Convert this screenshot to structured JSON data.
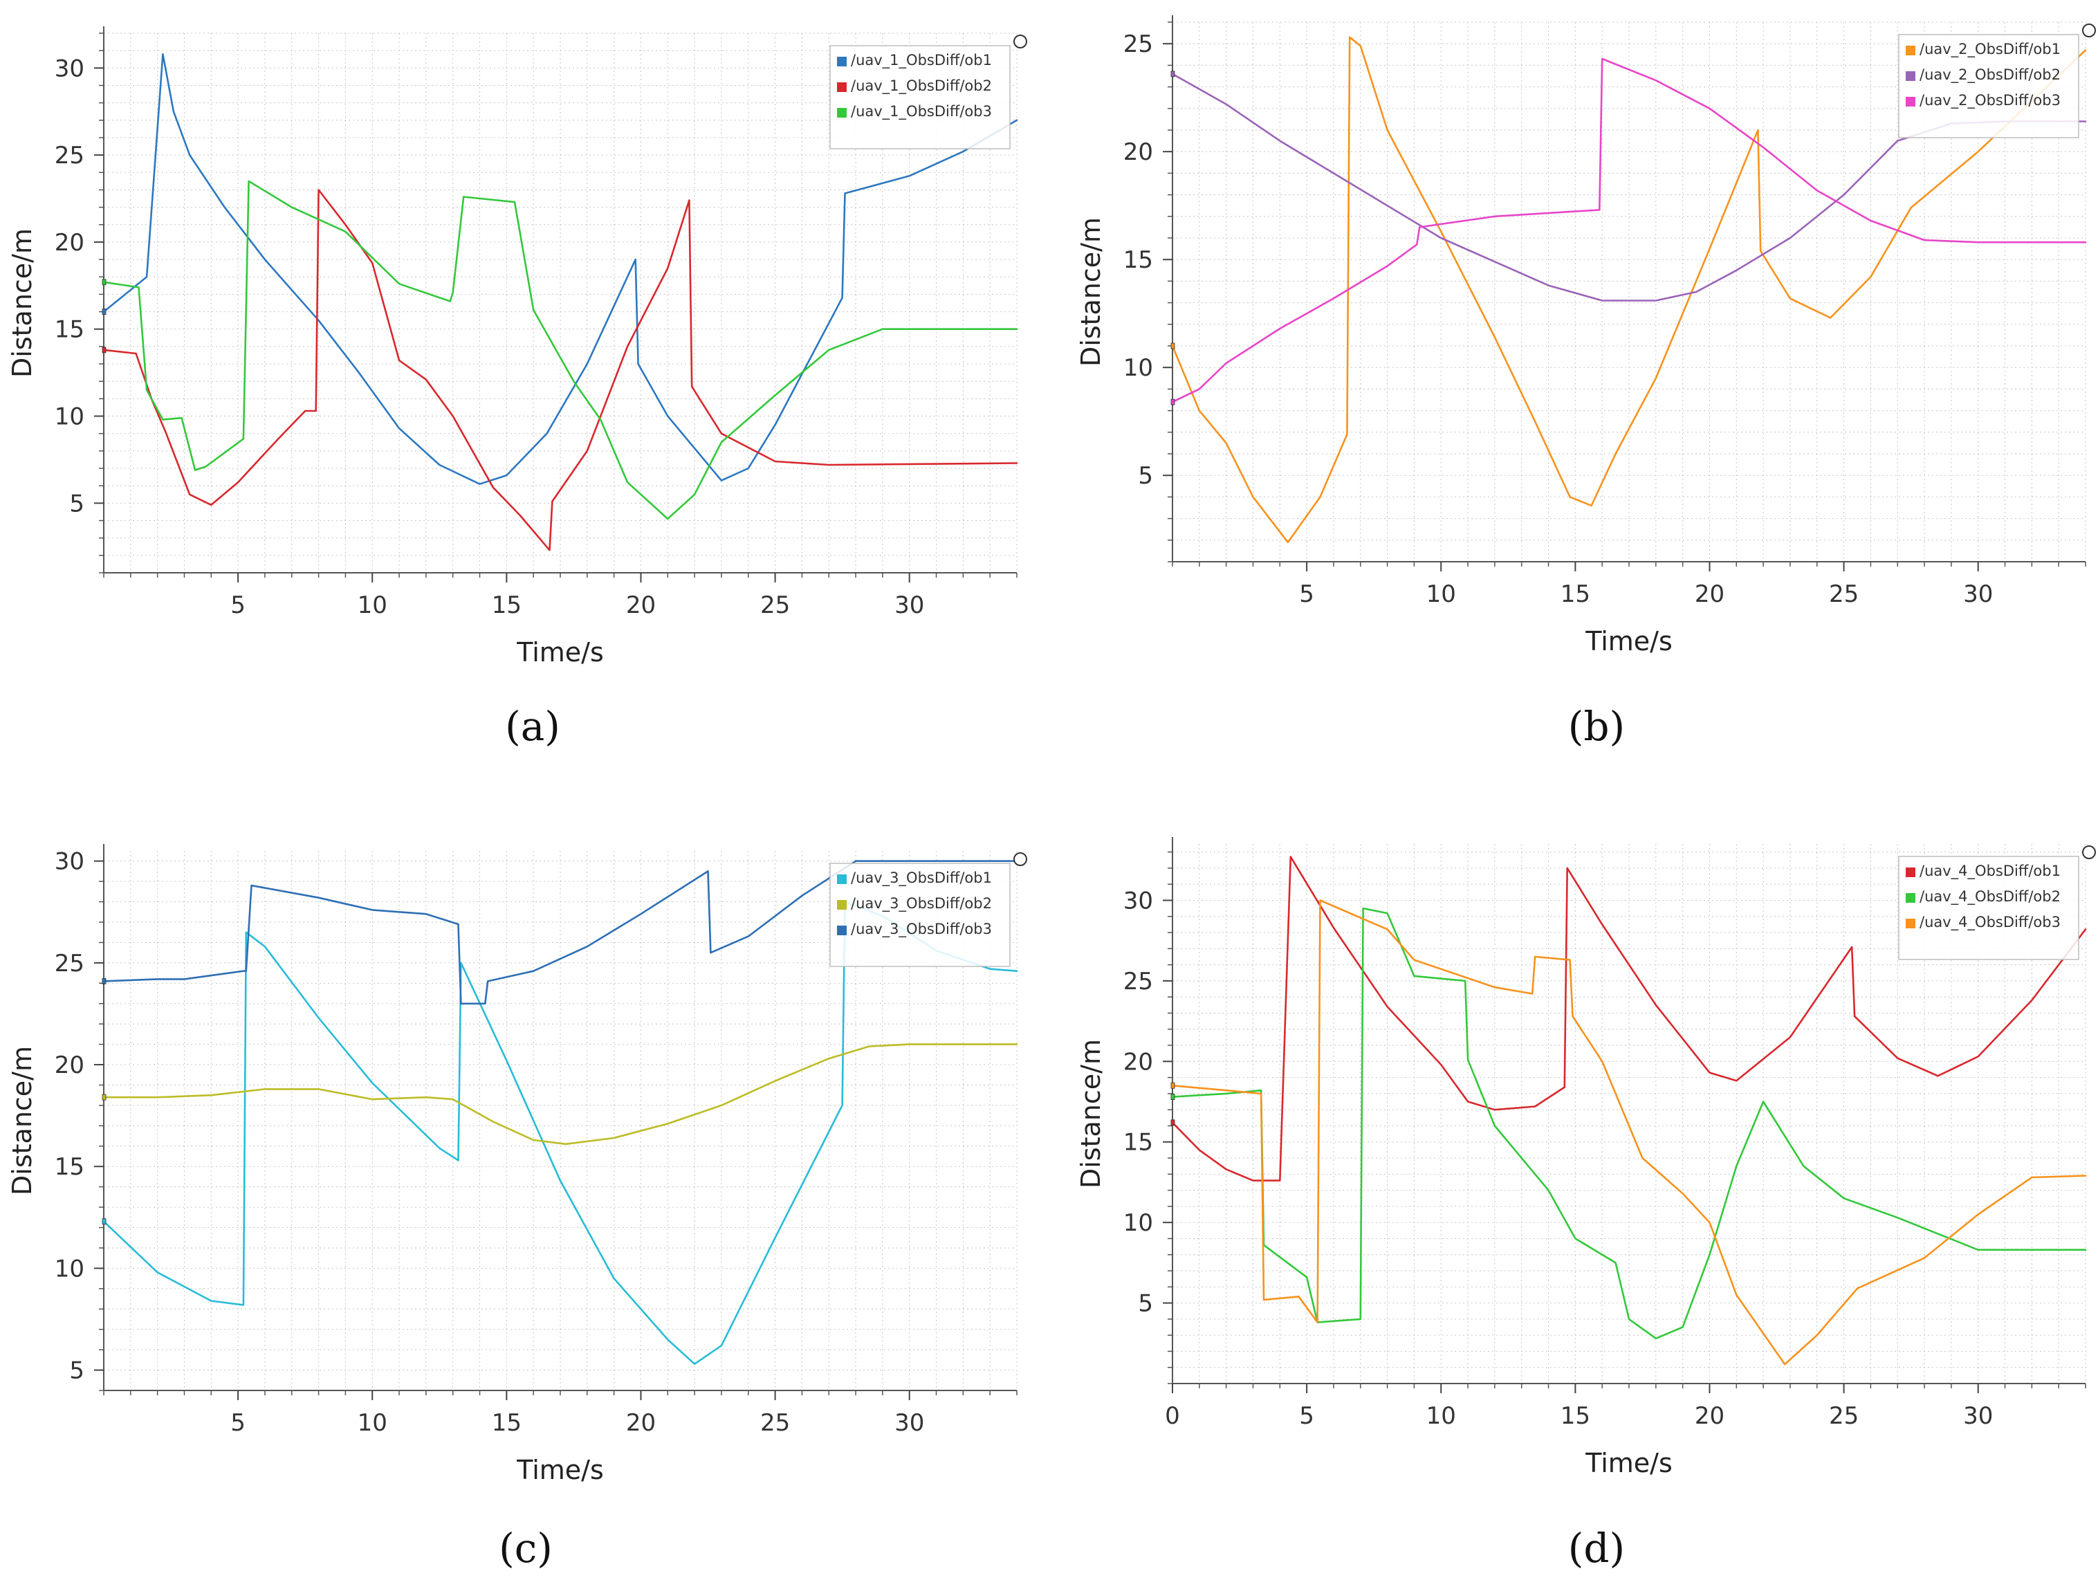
{
  "figure": {
    "xlabel": "Time/s",
    "ylabel": "Distance/m"
  },
  "chart_data": [
    {
      "type": "line",
      "panel_label": "(a)",
      "xlabel": "Time/s",
      "ylabel": "Distance/m",
      "xlim": [
        0,
        34
      ],
      "ylim": [
        1,
        32
      ],
      "xticks": [
        5,
        10,
        15,
        20,
        25,
        30
      ],
      "xtick_labels": [
        "5",
        "10",
        "15",
        "20",
        "25",
        "30"
      ],
      "yticks": [
        5,
        10,
        15,
        20,
        25,
        30
      ],
      "ytick_labels": [
        "5",
        "10",
        "15",
        "20",
        "25",
        "30"
      ],
      "legend_position": "top-right",
      "series": [
        {
          "name": "/uav_1_ObsDiff/ob1",
          "color": "#2e78c0",
          "x": [
            0,
            1.6,
            2.2,
            2.6,
            3.2,
            4.5,
            6,
            8,
            9.5,
            11,
            12.5,
            14,
            15,
            16.5,
            18,
            19.8,
            19.9,
            21,
            23,
            24,
            25,
            27.5,
            27.6,
            30,
            32,
            34
          ],
          "y": [
            16,
            18,
            30.8,
            27.5,
            25,
            22,
            19,
            15.5,
            12.5,
            9.3,
            7.2,
            6.1,
            6.6,
            9,
            13,
            19,
            13,
            10,
            6.3,
            7,
            9.5,
            16.8,
            22.8,
            23.8,
            25.2,
            27
          ]
        },
        {
          "name": "/uav_1_ObsDiff/ob2",
          "color": "#d8282e",
          "x": [
            0,
            1.2,
            1.8,
            2.3,
            3.2,
            4,
            5,
            6.5,
            7.5,
            7.9,
            8,
            9,
            10,
            11,
            12,
            13,
            14.5,
            15.5,
            16.6,
            16.7,
            18,
            19.5,
            21,
            21.8,
            21.9,
            23,
            25,
            27,
            34
          ],
          "y": [
            13.8,
            13.6,
            10.9,
            9.1,
            5.5,
            4.9,
            6.2,
            8.7,
            10.3,
            10.3,
            23,
            21,
            18.8,
            13.2,
            12.1,
            10,
            5.9,
            4.3,
            2.3,
            5.1,
            8,
            14,
            18.5,
            22.4,
            11.7,
            9,
            7.4,
            7.2,
            7.3
          ]
        },
        {
          "name": "/uav_1_ObsDiff/ob3",
          "color": "#34c83c",
          "x": [
            0,
            1.3,
            1.6,
            2.2,
            2.9,
            3.4,
            3.8,
            5.2,
            5.4,
            7,
            9,
            11,
            12.9,
            13,
            13.4,
            15.3,
            16,
            17.5,
            18.5,
            19.5,
            21,
            22,
            23,
            25,
            27,
            29,
            34
          ],
          "y": [
            17.7,
            17.4,
            11.5,
            9.8,
            9.9,
            6.9,
            7.1,
            8.7,
            23.5,
            22,
            20.6,
            17.6,
            16.6,
            17.1,
            22.6,
            22.3,
            16.1,
            12,
            9.8,
            6.2,
            4.1,
            5.5,
            8.5,
            11.2,
            13.8,
            15,
            15
          ]
        }
      ]
    },
    {
      "type": "line",
      "panel_label": "(b)",
      "xlabel": "Time/s",
      "ylabel": "Distance/m",
      "xlim": [
        0,
        34
      ],
      "ylim": [
        1,
        26
      ],
      "xticks": [
        5,
        10,
        15,
        20,
        25,
        30
      ],
      "xtick_labels": [
        "5",
        "10",
        "15",
        "20",
        "25",
        "30"
      ],
      "yticks": [
        5,
        10,
        15,
        20,
        25
      ],
      "ytick_labels": [
        "5",
        "10",
        "15",
        "20",
        "25"
      ],
      "legend_position": "top-right",
      "series": [
        {
          "name": "/uav_2_ObsDiff/ob1",
          "color": "#f7931e",
          "x": [
            0,
            1,
            2,
            3,
            4.3,
            5.5,
            6.5,
            6.6,
            7,
            8,
            10,
            12,
            13.5,
            14.8,
            15.6,
            16.5,
            18,
            20,
            21.8,
            21.9,
            23,
            24.5,
            26,
            27.5,
            30,
            34
          ],
          "y": [
            11,
            8,
            6.5,
            4,
            1.9,
            4,
            6.9,
            25.3,
            24.9,
            21,
            16.3,
            11.4,
            7.5,
            4,
            3.6,
            6,
            9.5,
            15.5,
            21,
            15.4,
            13.2,
            12.3,
            14.2,
            17.4,
            20,
            24.7
          ]
        },
        {
          "name": "/uav_2_ObsDiff/ob2",
          "color": "#9a64b8",
          "x": [
            0,
            2,
            4,
            6,
            8,
            10,
            12,
            14,
            16,
            18,
            19.5,
            21,
            23,
            25,
            27,
            29,
            31,
            34
          ],
          "y": [
            23.6,
            22.2,
            20.5,
            19,
            17.5,
            16,
            14.9,
            13.8,
            13.1,
            13.1,
            13.5,
            14.5,
            16,
            18,
            20.5,
            21.3,
            21.4,
            21.4
          ]
        },
        {
          "name": "/uav_2_ObsDiff/ob3",
          "color": "#e845c8",
          "x": [
            0,
            1,
            2,
            4,
            6,
            8,
            9.1,
            9.2,
            12,
            15.9,
            16,
            18,
            20,
            22,
            24,
            26,
            28,
            30,
            34
          ],
          "y": [
            8.4,
            9,
            10.2,
            11.8,
            13.2,
            14.7,
            15.7,
            16.5,
            17,
            17.3,
            24.3,
            23.3,
            22,
            20.2,
            18.2,
            16.8,
            15.9,
            15.8,
            15.8
          ]
        }
      ]
    },
    {
      "type": "line",
      "panel_label": "(c)",
      "xlabel": "Time/s",
      "ylabel": "Distance/m",
      "xlim": [
        0,
        34
      ],
      "ylim": [
        4,
        30.5
      ],
      "xticks": [
        5,
        10,
        15,
        20,
        25,
        30
      ],
      "xtick_labels": [
        "5",
        "10",
        "15",
        "20",
        "25",
        "30"
      ],
      "yticks": [
        5,
        10,
        15,
        20,
        25,
        30
      ],
      "ytick_labels": [
        "5",
        "10",
        "15",
        "20",
        "25",
        "30"
      ],
      "legend_position": "top-right",
      "series": [
        {
          "name": "/uav_3_ObsDiff/ob1",
          "color": "#28bcd6",
          "x": [
            0,
            2,
            4,
            5.2,
            5.3,
            6,
            8,
            10,
            12.5,
            13.2,
            13.3,
            15,
            17,
            19,
            21,
            22,
            23,
            25,
            27.5,
            27.6,
            29,
            31,
            33,
            34
          ],
          "y": [
            12.3,
            9.8,
            8.4,
            8.2,
            26.5,
            25.8,
            22.3,
            19.1,
            15.9,
            15.3,
            25,
            20.2,
            14.3,
            9.5,
            6.5,
            5.3,
            6.2,
            11.5,
            18,
            28,
            27.3,
            25.6,
            24.7,
            24.6
          ]
        },
        {
          "name": "/uav_3_ObsDiff/ob2",
          "color": "#bcbc26",
          "x": [
            0,
            2,
            4,
            6,
            8,
            10,
            12,
            13,
            14.5,
            16,
            17.2,
            19,
            21,
            23,
            25,
            27,
            28.5,
            30,
            34
          ],
          "y": [
            18.4,
            18.4,
            18.5,
            18.8,
            18.8,
            18.3,
            18.4,
            18.3,
            17.2,
            16.3,
            16.1,
            16.4,
            17.1,
            18,
            19.2,
            20.3,
            20.9,
            21,
            21
          ]
        },
        {
          "name": "/uav_3_ObsDiff/ob3",
          "color": "#2e6fb4",
          "x": [
            0,
            2,
            3,
            5.2,
            5.3,
            5.5,
            8,
            10,
            12,
            13.2,
            13.3,
            14.2,
            14.3,
            16,
            18,
            20,
            22.5,
            22.6,
            24,
            26,
            28,
            30,
            34
          ],
          "y": [
            24.1,
            24.2,
            24.2,
            24.6,
            24.6,
            28.8,
            28.2,
            27.6,
            27.4,
            26.9,
            23,
            23,
            24.1,
            24.6,
            25.8,
            27.4,
            29.5,
            25.5,
            26.3,
            28.3,
            30,
            30,
            30
          ]
        }
      ]
    },
    {
      "type": "line",
      "panel_label": "(d)",
      "xlabel": "Time/s",
      "ylabel": "Distance/m",
      "xlim": [
        0,
        34
      ],
      "ylim": [
        0,
        33.5
      ],
      "xticks": [
        0,
        5,
        10,
        15,
        20,
        25,
        30
      ],
      "xtick_labels": [
        "0",
        "5",
        "10",
        "15",
        "20",
        "25",
        "30"
      ],
      "yticks": [
        5,
        10,
        15,
        20,
        25,
        30
      ],
      "ytick_labels": [
        "5",
        "10",
        "15",
        "20",
        "25",
        "30"
      ],
      "legend_position": "top-right",
      "series": [
        {
          "name": "/uav_4_ObsDiff/ob1",
          "color": "#d8282e",
          "x": [
            0,
            1,
            2,
            3,
            4,
            4.4,
            6,
            8,
            10,
            11,
            12,
            13.5,
            14.6,
            14.7,
            16,
            18,
            20,
            21,
            23,
            25.3,
            25.4,
            27,
            28.5,
            30,
            32,
            34
          ],
          "y": [
            16.2,
            14.5,
            13.3,
            12.6,
            12.6,
            32.7,
            28.3,
            23.4,
            19.8,
            17.5,
            17,
            17.2,
            18.4,
            32,
            28.5,
            23.5,
            19.3,
            18.8,
            21.5,
            27.1,
            22.8,
            20.2,
            19.1,
            20.3,
            23.8,
            28.2
          ]
        },
        {
          "name": "/uav_4_ObsDiff/ob2",
          "color": "#34c83c",
          "x": [
            0,
            2,
            3.3,
            3.4,
            5,
            5.4,
            7,
            7.1,
            8,
            9,
            10.9,
            11,
            12,
            14,
            15,
            16.5,
            17,
            18,
            19,
            20,
            21,
            22,
            23.5,
            25,
            27,
            30,
            34
          ],
          "y": [
            17.8,
            18,
            18.2,
            8.6,
            6.6,
            3.8,
            4,
            29.5,
            29.2,
            25.3,
            25,
            20.1,
            16,
            12,
            9,
            7.5,
            4,
            2.8,
            3.5,
            8,
            13.5,
            17.5,
            13.5,
            11.5,
            10.3,
            8.3,
            8.3
          ]
        },
        {
          "name": "/uav_4_ObsDiff/ob3",
          "color": "#f7931e",
          "x": [
            0,
            2,
            3.3,
            3.4,
            4.7,
            5.4,
            5.5,
            8,
            9,
            12,
            13.4,
            13.5,
            14.8,
            14.9,
            16,
            17.5,
            19,
            20,
            21,
            22.8,
            24,
            25.5,
            28,
            30,
            32,
            34
          ],
          "y": [
            18.5,
            18.2,
            18,
            5.2,
            5.4,
            3.8,
            30,
            28.2,
            26.3,
            24.6,
            24.2,
            26.5,
            26.3,
            22.8,
            20,
            14,
            11.8,
            10,
            5.5,
            1.2,
            3,
            5.9,
            7.8,
            10.5,
            12.8,
            12.9
          ]
        }
      ]
    }
  ]
}
